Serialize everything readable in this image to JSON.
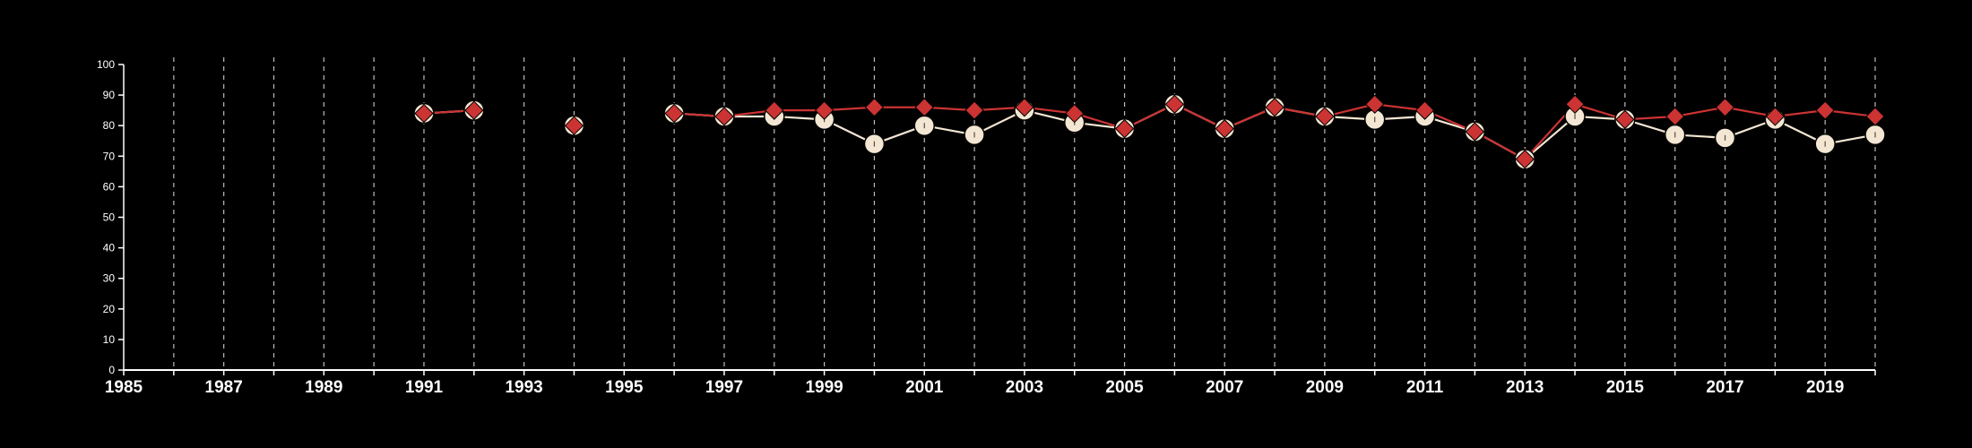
{
  "chart_data": {
    "type": "line",
    "title": "",
    "xlabel": "",
    "ylabel": "",
    "xlim": [
      1985,
      2020
    ],
    "ylim": [
      0,
      100
    ],
    "x_ticks": [
      "1985",
      "1987",
      "1989",
      "1991",
      "1993",
      "1995",
      "1997",
      "1999",
      "2001",
      "2003",
      "2005",
      "2007",
      "2009",
      "2011",
      "2013",
      "2015",
      "2017",
      "2019"
    ],
    "y_ticks": [
      "0",
      "10",
      "20",
      "30",
      "40",
      "50",
      "60",
      "70",
      "80",
      "90",
      "100"
    ],
    "grid": "vertical dashed lines at every year",
    "legend": "none",
    "colors": {
      "background": "#000000",
      "axis": "#ffffff",
      "grid": "#bbbbbb",
      "series_a": "#f3e6d3",
      "series_b": "#cc3333"
    },
    "series": [
      {
        "marker": "circle",
        "color": "#f3e6d3",
        "points": [
          [
            1991,
            84
          ],
          [
            1992,
            85
          ],
          [
            1994,
            80
          ],
          [
            1996,
            84
          ],
          [
            1997,
            83
          ],
          [
            1998,
            83
          ],
          [
            1999,
            82
          ],
          [
            2000,
            74
          ],
          [
            2001,
            80
          ],
          [
            2002,
            77
          ],
          [
            2003,
            85
          ],
          [
            2004,
            81
          ],
          [
            2005,
            79
          ],
          [
            2006,
            87
          ],
          [
            2007,
            79
          ],
          [
            2008,
            86
          ],
          [
            2009,
            83
          ],
          [
            2010,
            82
          ],
          [
            2011,
            83
          ],
          [
            2012,
            78
          ],
          [
            2013,
            69
          ],
          [
            2014,
            83
          ],
          [
            2015,
            82
          ],
          [
            2016,
            77
          ],
          [
            2017,
            76
          ],
          [
            2018,
            82
          ],
          [
            2019,
            74
          ],
          [
            2020,
            77
          ]
        ]
      },
      {
        "marker": "diamond",
        "color": "#cc3333",
        "points": [
          [
            1991,
            84
          ],
          [
            1992,
            85
          ],
          [
            1994,
            80
          ],
          [
            1996,
            84
          ],
          [
            1997,
            83
          ],
          [
            1998,
            85
          ],
          [
            1999,
            85
          ],
          [
            2000,
            86
          ],
          [
            2001,
            86
          ],
          [
            2002,
            85
          ],
          [
            2003,
            86
          ],
          [
            2004,
            84
          ],
          [
            2005,
            79
          ],
          [
            2006,
            87
          ],
          [
            2007,
            79
          ],
          [
            2008,
            86
          ],
          [
            2009,
            83
          ],
          [
            2010,
            87
          ],
          [
            2011,
            85
          ],
          [
            2012,
            78
          ],
          [
            2013,
            69
          ],
          [
            2014,
            87
          ],
          [
            2015,
            82
          ],
          [
            2016,
            83
          ],
          [
            2017,
            86
          ],
          [
            2018,
            83
          ],
          [
            2019,
            85
          ],
          [
            2020,
            83
          ]
        ]
      }
    ]
  }
}
